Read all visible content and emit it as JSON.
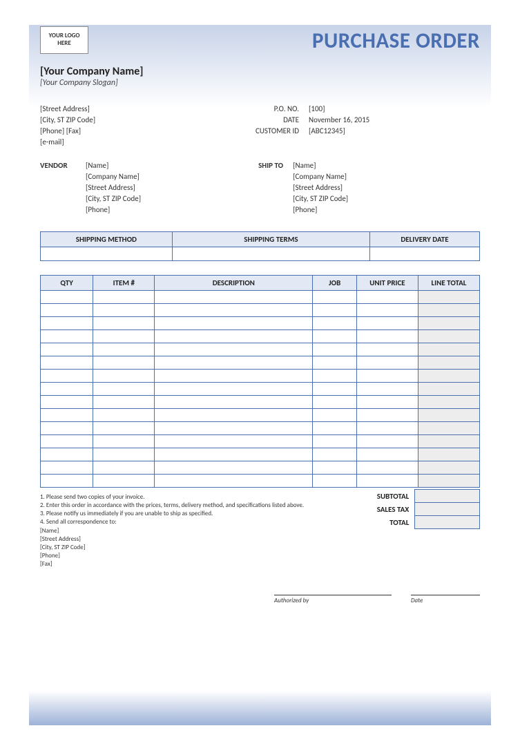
{
  "colors": {
    "accent": "#4a6fb0",
    "header_bg": "#e3e9f4",
    "shade_bg": "#ededed",
    "gradient_top": "#c8d3e9",
    "gradient_bottom": "#9eb2d8",
    "page_bg": "#ffffff"
  },
  "logo_placeholder": "YOUR LOGO HERE",
  "title": "PURCHASE ORDER",
  "company": {
    "name": "[Your Company Name]",
    "slogan": "[Your Company Slogan]",
    "street": "[Street Address]",
    "city": "[City, ST  ZIP Code]",
    "phone_fax": "[Phone]  [Fax]",
    "email": "[e-mail]"
  },
  "meta": {
    "po_no_label": "P.O. NO.",
    "po_no": "[100]",
    "date_label": "DATE",
    "date": "November 16, 2015",
    "customer_id_label": "CUSTOMER ID",
    "customer_id": "[ABC12345]"
  },
  "vendor": {
    "label": "VENDOR",
    "name": "[Name]",
    "company": "[Company Name]",
    "street": "[Street Address]",
    "city": "[City, ST  ZIP Code]",
    "phone": "[Phone]"
  },
  "shipto": {
    "label": "SHIP TO",
    "name": "[Name]",
    "company": "[Company Name]",
    "street": "[Street Address]",
    "city": "[City, ST  ZIP Code]",
    "phone": "[Phone]"
  },
  "shipping_table": {
    "headers": [
      "SHIPPING METHOD",
      "SHIPPING TERMS",
      "DELIVERY DATE"
    ],
    "col_widths": [
      "30%",
      "45%",
      "25%"
    ]
  },
  "items_table": {
    "headers": [
      "QTY",
      "ITEM #",
      "DESCRIPTION",
      "JOB",
      "UNIT PRICE",
      "LINE TOTAL"
    ],
    "col_widths": [
      "12%",
      "14%",
      "36%",
      "10%",
      "14%",
      "14%"
    ],
    "num_rows": 15,
    "shaded_col_index": 5
  },
  "totals": {
    "subtotal_label": "SUBTOTAL",
    "salestax_label": "SALES TAX",
    "total_label": "TOTAL"
  },
  "instructions": {
    "lines": [
      "1. Please send two copies of your invoice.",
      "2. Enter this order in accordance with the prices, terms, delivery method, and specifications listed above.",
      "3. Please notify us immediately if you are unable to ship as specified.",
      "4. Send all correspondence to:"
    ],
    "correspondence": [
      "[Name]",
      "[Street Address]",
      "[City, ST  ZIP Code]",
      "[Phone]",
      "[Fax]"
    ]
  },
  "signatures": {
    "authorized_by": "Authorized by",
    "date": "Date"
  }
}
